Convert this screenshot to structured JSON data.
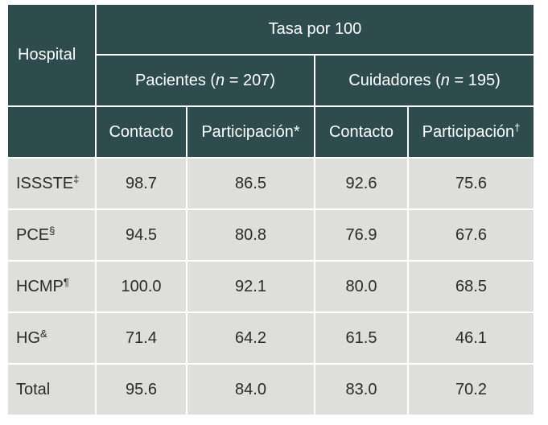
{
  "header": {
    "hospital": "Hospital",
    "rate": "Tasa por 100",
    "patients": {
      "prefix": "Pacientes (",
      "n": "n",
      "suffix": " = 207)"
    },
    "caregivers": {
      "prefix": "Cuidadores (",
      "n": "n",
      "suffix": " = 195)"
    },
    "contact_1": "Contacto",
    "participation_1": "Participación",
    "participation_1_mark": "*",
    "contact_2": "Contacto",
    "participation_2": "Participación",
    "participation_2_mark": "†"
  },
  "rows": [
    {
      "name": "ISSSTE",
      "mark": "‡",
      "c1": "98.7",
      "p1": "86.5",
      "c2": "92.6",
      "p2": "75.6"
    },
    {
      "name": "PCE",
      "mark": "§",
      "c1": "94.5",
      "p1": "80.8",
      "c2": "76.9",
      "p2": "67.6"
    },
    {
      "name": "HCMP",
      "mark": "¶",
      "c1": "100.0",
      "p1": "92.1",
      "c2": "80.0",
      "p2": "68.5"
    },
    {
      "name": "HG",
      "mark": "&",
      "c1": "71.4",
      "p1": "64.2",
      "c2": "61.5",
      "p2": "46.1"
    },
    {
      "name": "Total",
      "mark": "",
      "c1": "95.6",
      "p1": "84.0",
      "c2": "83.0",
      "p2": "70.2"
    }
  ]
}
